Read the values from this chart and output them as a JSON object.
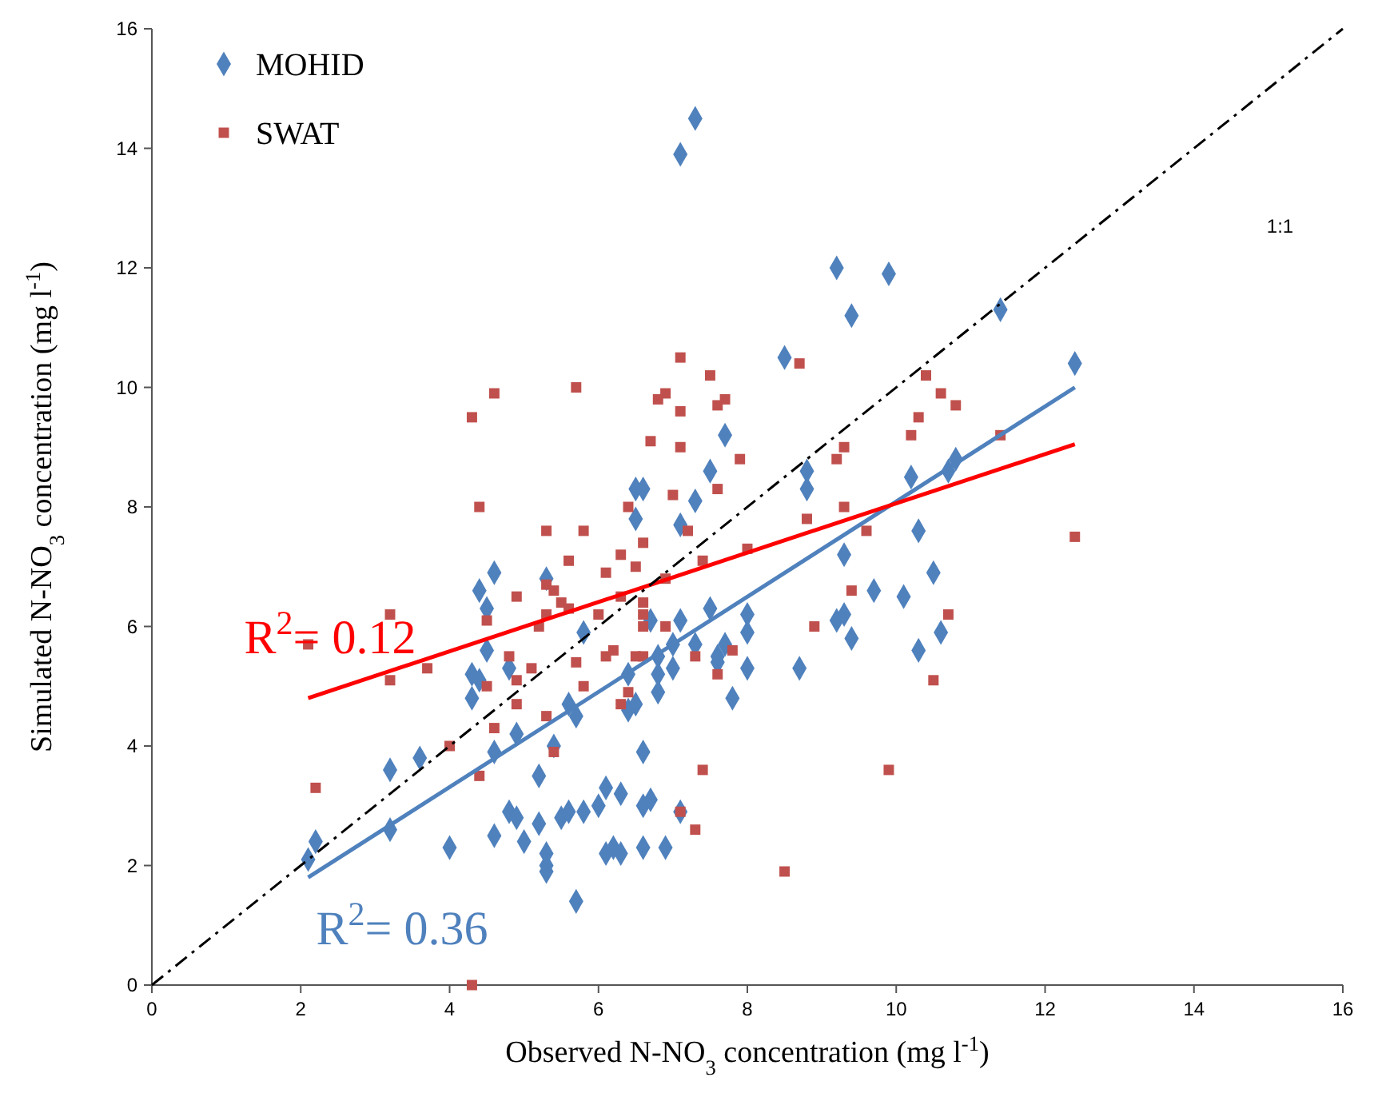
{
  "chart_data": {
    "type": "scatter",
    "xlabel": "Observed N-NO$_{3}$ concentration (mg l$^{-1}$)",
    "ylabel": "Simulated N-NO$_{3}$ concentration (mg l$^{-1}$)",
    "xlim": [
      0,
      16
    ],
    "ylim": [
      0,
      16
    ],
    "xticks": [
      0,
      2,
      4,
      6,
      8,
      10,
      12,
      14,
      16
    ],
    "yticks": [
      0,
      2,
      4,
      6,
      8,
      10,
      12,
      14,
      16
    ],
    "grid": false,
    "legend": "top left",
    "series": [
      {
        "name": "MOHID",
        "marker": "diamond",
        "color": "#4f81bd",
        "x": [
          2.1,
          2.2,
          3.2,
          3.2,
          3.6,
          4.0,
          4.3,
          4.3,
          4.4,
          4.4,
          4.5,
          4.5,
          4.6,
          4.6,
          4.6,
          4.8,
          4.8,
          4.9,
          4.9,
          5.0,
          5.2,
          5.2,
          5.3,
          5.3,
          5.3,
          5.3,
          5.4,
          5.5,
          5.6,
          5.6,
          5.7,
          5.7,
          5.8,
          5.8,
          6.0,
          6.1,
          6.1,
          6.2,
          6.3,
          6.3,
          6.4,
          6.4,
          6.5,
          6.5,
          6.5,
          6.6,
          6.6,
          6.6,
          6.6,
          6.7,
          6.7,
          6.8,
          6.8,
          6.8,
          6.9,
          7.0,
          7.0,
          7.1,
          7.1,
          7.1,
          7.1,
          7.3,
          7.3,
          7.3,
          7.5,
          7.5,
          7.6,
          7.6,
          7.7,
          7.7,
          7.8,
          8.0,
          8.0,
          8.0,
          8.5,
          8.7,
          8.8,
          8.8,
          9.2,
          9.2,
          9.3,
          9.3,
          9.4,
          9.4,
          9.7,
          9.9,
          10.1,
          10.2,
          10.3,
          10.3,
          10.5,
          10.6,
          10.7,
          10.8,
          11.4,
          12.4
        ],
        "values": [
          2.1,
          2.4,
          2.6,
          3.6,
          3.8,
          2.3,
          4.8,
          5.2,
          5.1,
          6.6,
          6.3,
          5.6,
          6.9,
          3.9,
          2.5,
          5.3,
          2.9,
          2.8,
          4.2,
          2.4,
          2.7,
          3.5,
          2.0,
          1.9,
          2.2,
          6.8,
          4.0,
          2.8,
          4.7,
          2.9,
          4.5,
          1.4,
          2.9,
          5.9,
          3.0,
          2.2,
          3.3,
          2.3,
          3.2,
          2.2,
          4.6,
          5.2,
          4.7,
          7.8,
          8.3,
          8.3,
          3.0,
          3.9,
          2.3,
          6.1,
          3.1,
          5.5,
          5.2,
          4.9,
          2.3,
          5.7,
          5.3,
          6.1,
          2.9,
          7.7,
          13.9,
          14.5,
          8.1,
          5.7,
          6.3,
          8.6,
          5.5,
          5.4,
          9.2,
          5.7,
          4.8,
          6.2,
          5.9,
          5.3,
          10.5,
          5.3,
          8.3,
          8.6,
          12.0,
          6.1,
          7.2,
          6.2,
          11.2,
          5.8,
          6.6,
          11.9,
          6.5,
          8.5,
          7.6,
          5.6,
          6.9,
          5.9,
          8.6,
          8.8,
          11.3,
          10.4
        ]
      },
      {
        "name": "SWAT",
        "marker": "square",
        "color": "#c0504d",
        "x": [
          2.1,
          2.2,
          3.2,
          3.2,
          3.7,
          4.0,
          4.3,
          4.3,
          4.4,
          4.4,
          4.5,
          4.5,
          4.6,
          4.6,
          4.8,
          4.9,
          4.9,
          4.9,
          5.1,
          5.2,
          5.3,
          5.3,
          5.3,
          5.3,
          5.4,
          5.4,
          5.5,
          5.6,
          5.6,
          5.7,
          5.7,
          5.8,
          5.8,
          6.0,
          6.1,
          6.1,
          6.2,
          6.3,
          6.3,
          6.3,
          6.4,
          6.4,
          6.5,
          6.5,
          6.6,
          6.6,
          6.6,
          6.6,
          6.6,
          6.7,
          6.8,
          6.9,
          6.9,
          6.9,
          7.0,
          7.1,
          7.1,
          7.1,
          7.1,
          7.2,
          7.3,
          7.3,
          7.4,
          7.4,
          7.5,
          7.6,
          7.6,
          7.6,
          7.7,
          7.8,
          7.9,
          8.0,
          8.5,
          8.7,
          8.8,
          8.9,
          9.2,
          9.3,
          9.3,
          9.4,
          9.6,
          9.9,
          10.2,
          10.3,
          10.4,
          10.5,
          10.6,
          10.7,
          10.8,
          11.4,
          12.4
        ],
        "values": [
          5.7,
          3.3,
          6.2,
          5.1,
          5.3,
          4.0,
          9.5,
          0.0,
          8.0,
          3.5,
          6.1,
          5.0,
          9.9,
          4.3,
          5.5,
          6.5,
          4.7,
          5.1,
          5.3,
          6.0,
          7.6,
          6.7,
          4.5,
          6.2,
          3.9,
          6.6,
          6.4,
          7.1,
          6.3,
          5.4,
          10.0,
          7.6,
          5.0,
          6.2,
          6.9,
          5.5,
          5.6,
          4.7,
          6.5,
          7.2,
          8.0,
          4.9,
          7.0,
          5.5,
          6.4,
          6.0,
          6.2,
          5.5,
          7.4,
          9.1,
          9.8,
          6.8,
          6.0,
          9.9,
          8.2,
          10.5,
          9.6,
          9.0,
          2.9,
          7.6,
          5.5,
          2.6,
          3.6,
          7.1,
          10.2,
          9.7,
          8.3,
          5.2,
          9.8,
          5.6,
          8.8,
          7.3,
          1.9,
          10.4,
          7.8,
          6.0,
          8.8,
          9.0,
          8.0,
          6.6,
          7.6,
          3.6,
          9.2,
          9.5,
          10.2,
          5.1,
          9.9,
          6.2,
          9.7,
          9.2,
          7.5
        ]
      },
      {
        "type": "line",
        "color": "#4f81bd",
        "line_style": "solid",
        "x": [
          2.1,
          12.4
        ],
        "values": [
          1.8,
          10.0
        ]
      },
      {
        "type": "line",
        "color": "#ff0000",
        "line_style": "solid",
        "x": [
          2.1,
          12.4
        ],
        "values": [
          4.8,
          9.05
        ]
      },
      {
        "type": "line",
        "color": "#000000",
        "line_style": "dashed",
        "x": [
          0,
          16
        ],
        "values": [
          0,
          16
        ]
      }
    ],
    "annotations": [
      "R$^{2}$= 0.36",
      "R$^{2}$= 0.12",
      "1:1"
    ]
  }
}
